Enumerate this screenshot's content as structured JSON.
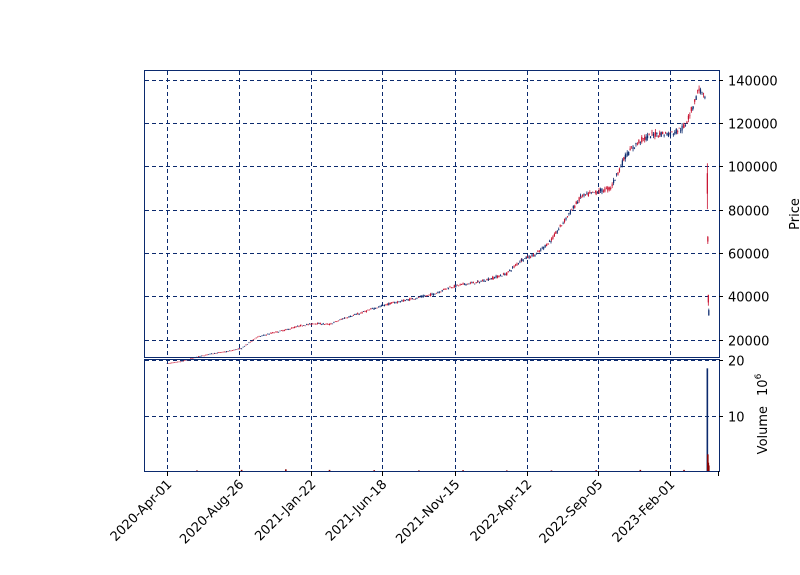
{
  "chart_data": [
    {
      "type": "candlestick",
      "panel": "price",
      "title": "",
      "xlabel": "",
      "ylabel": "Price",
      "x_range": [
        "2020-02-15",
        "2023-05-12"
      ],
      "ylim": [
        12000,
        144000
      ],
      "yticks": [
        20000,
        40000,
        60000,
        80000,
        100000,
        120000,
        140000
      ],
      "grid": true,
      "colors": {
        "up": "#0b2a6e",
        "down": "#c8102e"
      },
      "series": [
        {
          "x": [
            "2020-04-01",
            "2020-05-01",
            "2020-06-01",
            "2020-07-01",
            "2020-08-01",
            "2020-09-01",
            "2020-10-01",
            "2020-11-01",
            "2020-12-01",
            "2021-01-01",
            "2021-02-01",
            "2021-03-01",
            "2021-04-01",
            "2021-05-01",
            "2021-06-01",
            "2021-07-01",
            "2021-08-01",
            "2021-09-01",
            "2021-10-01",
            "2021-11-01",
            "2021-12-01",
            "2022-01-01",
            "2022-02-01",
            "2022-03-01",
            "2022-04-01",
            "2022-05-01",
            "2022-06-01",
            "2022-07-01",
            "2022-08-01",
            "2022-09-01",
            "2022-10-01",
            "2022-11-01",
            "2022-12-01",
            "2023-01-01",
            "2023-02-01",
            "2023-03-01",
            "2023-03-20",
            "2023-04-01",
            "2023-04-15"
          ],
          "values": [
            9000,
            10000,
            12000,
            13500,
            14500,
            16000,
            21000,
            23000,
            24500,
            26500,
            27500,
            27000,
            30000,
            32000,
            34500,
            36500,
            38000,
            39500,
            41000,
            44000,
            45500,
            46500,
            48500,
            50500,
            57000,
            59500,
            66000,
            76000,
            86000,
            88000,
            90000,
            105000,
            112000,
            115000,
            115000,
            118000,
            128000,
            136000,
            130000
          ]
        },
        {
          "name": "",
          "x": [
            "2023-04-18",
            "2023-04-20",
            "2023-04-22"
          ],
          "values": [
            90000,
            38000,
            27000
          ]
        }
      ]
    },
    {
      "type": "bar",
      "panel": "volume",
      "title": "",
      "ylabel": "Volume  10^6",
      "ylabel_multiplier": "10",
      "ylabel_exponent": "6",
      "ylim": [
        0,
        20
      ],
      "yticks": [
        10,
        20
      ],
      "grid": true,
      "colors": {
        "up": "#0b2a6e",
        "down": "#8b0000"
      },
      "x": [
        "2020-06-01",
        "2020-09-01",
        "2020-12-01",
        "2021-03-01",
        "2021-06-01",
        "2021-09-01",
        "2021-12-01",
        "2022-03-01",
        "2022-06-01",
        "2022-09-01",
        "2022-12-01",
        "2023-03-01",
        "2023-04-18",
        "2023-04-19",
        "2023-04-20",
        "2023-04-21"
      ],
      "values": [
        0.1,
        0.2,
        0.3,
        0.2,
        0.15,
        0.1,
        0.15,
        0.1,
        0.1,
        0.15,
        0.2,
        0.2,
        18.5,
        3.0,
        1.5,
        1.0
      ]
    }
  ],
  "x_axis": {
    "tick_labels": [
      "2020-Apr-01",
      "2020-Aug-26",
      "2021-Jan-22",
      "2021-Jun-18",
      "2021-Nov-15",
      "2022-Apr-12",
      "2022-Sep-05",
      "2023-Feb-01"
    ]
  },
  "price_panel": {
    "ylabel": "Price",
    "tick_labels": [
      "20000",
      "40000",
      "60000",
      "80000",
      "100000",
      "120000",
      "140000"
    ]
  },
  "volume_panel": {
    "ylabel": "Volume",
    "ylabel_multiplier": "10",
    "ylabel_exponent": "6",
    "tick_labels": [
      "10",
      "20"
    ]
  }
}
